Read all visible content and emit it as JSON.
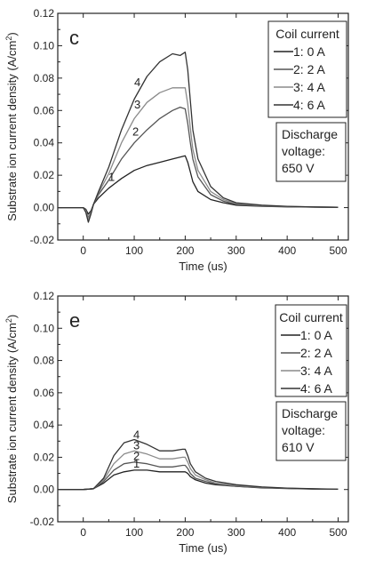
{
  "chart_data": [
    {
      "type": "line",
      "panel_label": "c",
      "xlabel": "Time (us)",
      "ylabel": "Substrate ion current density (A/cm",
      "ylabel_sup": "2",
      "ylabel_close": ")",
      "xlim": [
        -50,
        520
      ],
      "ylim": [
        -0.02,
        0.12
      ],
      "xticks": [
        0,
        100,
        200,
        300,
        400,
        500
      ],
      "yticks": [
        -0.02,
        0.0,
        0.02,
        0.04,
        0.06,
        0.08,
        0.1,
        0.12
      ],
      "legend_title": "Coil current",
      "legend_position": "top-right",
      "note_lines": [
        "Discharge",
        "voltage:",
        "650 V"
      ],
      "series": [
        {
          "name": "1: 0 A",
          "curve_label": "1",
          "color": "#222222",
          "x": [
            -50,
            0,
            5,
            10,
            15,
            20,
            30,
            50,
            75,
            100,
            125,
            150,
            175,
            200,
            205,
            210,
            215,
            225,
            250,
            275,
            300,
            350,
            400,
            450,
            500
          ],
          "y": [
            0,
            0,
            -0.001,
            -0.004,
            -0.002,
            0.002,
            0.006,
            0.012,
            0.018,
            0.023,
            0.026,
            0.028,
            0.03,
            0.032,
            0.028,
            0.022,
            0.016,
            0.01,
            0.005,
            0.003,
            0.0015,
            0.0008,
            0.0005,
            0.0003,
            0.0002
          ]
        },
        {
          "name": "2: 2 A",
          "curve_label": "2",
          "color": "#555555",
          "x": [
            -50,
            0,
            5,
            10,
            15,
            20,
            30,
            50,
            75,
            100,
            125,
            150,
            175,
            190,
            200,
            205,
            210,
            215,
            225,
            250,
            275,
            300,
            350,
            400,
            450,
            500
          ],
          "y": [
            0,
            0,
            -0.002,
            -0.006,
            -0.003,
            0.002,
            0.008,
            0.017,
            0.03,
            0.04,
            0.048,
            0.055,
            0.06,
            0.062,
            0.061,
            0.052,
            0.04,
            0.03,
            0.019,
            0.008,
            0.004,
            0.002,
            0.001,
            0.0006,
            0.0003,
            0.0002
          ]
        },
        {
          "name": "3: 4 A",
          "curve_label": "3",
          "color": "#8a8a8a",
          "x": [
            -50,
            0,
            5,
            10,
            15,
            20,
            30,
            50,
            75,
            100,
            125,
            150,
            175,
            200,
            205,
            210,
            215,
            225,
            250,
            275,
            300,
            350,
            400,
            450,
            500
          ],
          "y": [
            0,
            0,
            -0.002,
            -0.007,
            -0.003,
            0.002,
            0.009,
            0.021,
            0.04,
            0.055,
            0.065,
            0.071,
            0.074,
            0.074,
            0.064,
            0.049,
            0.036,
            0.023,
            0.01,
            0.005,
            0.0025,
            0.0012,
            0.0007,
            0.0004,
            0.0002
          ]
        },
        {
          "name": "4: 6 A",
          "curve_label": "4",
          "color": "#333333",
          "x": [
            -50,
            0,
            5,
            10,
            15,
            20,
            30,
            50,
            75,
            100,
            125,
            150,
            175,
            190,
            200,
            205,
            210,
            215,
            225,
            250,
            275,
            300,
            350,
            400,
            450,
            500
          ],
          "y": [
            0,
            0,
            -0.003,
            -0.009,
            -0.004,
            0.002,
            0.01,
            0.025,
            0.048,
            0.067,
            0.081,
            0.09,
            0.095,
            0.094,
            0.096,
            0.085,
            0.066,
            0.048,
            0.03,
            0.013,
            0.006,
            0.003,
            0.0015,
            0.0008,
            0.0004,
            0.0002
          ]
        }
      ]
    },
    {
      "type": "line",
      "panel_label": "e",
      "xlabel": "Time (us)",
      "ylabel": "Substrate ion current density (A/cm",
      "ylabel_sup": "2",
      "ylabel_close": ")",
      "xlim": [
        -50,
        520
      ],
      "ylim": [
        -0.02,
        0.12
      ],
      "xticks": [
        0,
        100,
        200,
        300,
        400,
        500
      ],
      "yticks": [
        -0.02,
        0.0,
        0.02,
        0.04,
        0.06,
        0.08,
        0.1,
        0.12
      ],
      "legend_title": "Coil current",
      "legend_position": "top-right",
      "note_lines": [
        "Discharge",
        "voltage:",
        "610 V"
      ],
      "series": [
        {
          "name": "1: 0 A",
          "curve_label": "1",
          "color": "#222222",
          "x": [
            -50,
            0,
            20,
            40,
            60,
            80,
            100,
            125,
            150,
            175,
            195,
            200,
            205,
            210,
            220,
            240,
            260,
            300,
            350,
            400,
            450,
            500
          ],
          "y": [
            0,
            0,
            0.0005,
            0.004,
            0.009,
            0.011,
            0.012,
            0.012,
            0.011,
            0.011,
            0.011,
            0.011,
            0.01,
            0.008,
            0.006,
            0.004,
            0.003,
            0.002,
            0.001,
            0.0006,
            0.0003,
            0.0002
          ]
        },
        {
          "name": "2: 2 A",
          "curve_label": "2",
          "color": "#555555",
          "x": [
            -50,
            0,
            20,
            40,
            60,
            80,
            100,
            125,
            150,
            175,
            195,
            200,
            205,
            210,
            220,
            240,
            260,
            300,
            350,
            400,
            450,
            500
          ],
          "y": [
            0,
            0,
            0.0005,
            0.005,
            0.012,
            0.016,
            0.017,
            0.016,
            0.014,
            0.014,
            0.015,
            0.015,
            0.013,
            0.01,
            0.007,
            0.005,
            0.0035,
            0.002,
            0.0012,
            0.0007,
            0.0004,
            0.0002
          ]
        },
        {
          "name": "3: 4 A",
          "curve_label": "3",
          "color": "#8a8a8a",
          "x": [
            -50,
            0,
            20,
            40,
            60,
            80,
            100,
            125,
            150,
            175,
            195,
            200,
            205,
            210,
            220,
            240,
            260,
            300,
            350,
            400,
            450,
            500
          ],
          "y": [
            0,
            0,
            0.0005,
            0.006,
            0.016,
            0.022,
            0.024,
            0.022,
            0.019,
            0.019,
            0.02,
            0.02,
            0.017,
            0.013,
            0.009,
            0.006,
            0.004,
            0.0025,
            0.0014,
            0.0008,
            0.0004,
            0.0002
          ]
        },
        {
          "name": "4: 6 A",
          "curve_label": "4",
          "color": "#333333",
          "x": [
            -50,
            0,
            20,
            40,
            60,
            80,
            100,
            125,
            150,
            175,
            195,
            200,
            205,
            210,
            220,
            240,
            260,
            300,
            350,
            400,
            450,
            500
          ],
          "y": [
            0,
            0,
            0.0005,
            0.007,
            0.021,
            0.029,
            0.031,
            0.028,
            0.024,
            0.024,
            0.025,
            0.025,
            0.021,
            0.016,
            0.011,
            0.007,
            0.005,
            0.003,
            0.0016,
            0.0009,
            0.0005,
            0.0002
          ]
        }
      ]
    }
  ]
}
